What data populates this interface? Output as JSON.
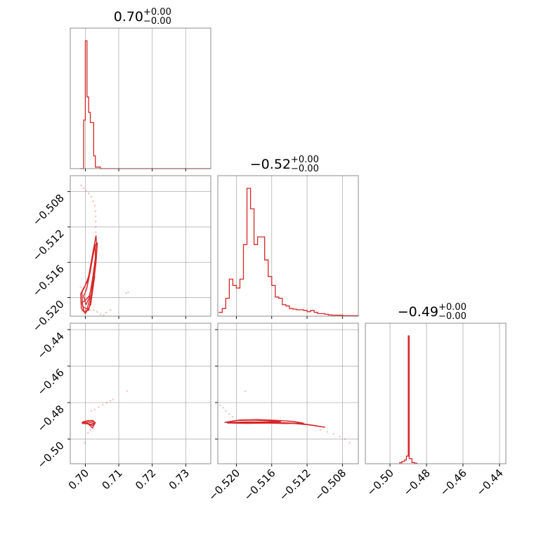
{
  "chart_data": {
    "type": "corner",
    "color": "#d62728",
    "grid": true,
    "parameters": [
      {
        "index": 0,
        "range": [
          0.6955,
          0.7375
        ],
        "ticks": [
          0.7,
          0.71,
          0.72,
          0.73
        ],
        "tick_labels": [
          "0.70",
          "0.71",
          "0.72",
          "0.73"
        ]
      },
      {
        "index": 1,
        "range": [
          -0.5221,
          -0.5062
        ],
        "ticks": [
          -0.52,
          -0.516,
          -0.512,
          -0.508
        ],
        "tick_labels": [
          "−0.520",
          "−0.516",
          "−0.512",
          "−0.508"
        ]
      },
      {
        "index": 2,
        "range": [
          -0.5135,
          -0.4365
        ],
        "ticks": [
          -0.5,
          -0.48,
          -0.46,
          -0.44
        ],
        "tick_labels": [
          "−0.50",
          "−0.48",
          "−0.46",
          "−0.44"
        ]
      }
    ],
    "titles": [
      {
        "value": "0.70",
        "plus": "+0.00",
        "minus": "−0.00"
      },
      {
        "value": "−0.52",
        "plus": "+0.00",
        "minus": "−0.00"
      },
      {
        "value": "−0.49",
        "plus": "+0.00",
        "minus": "−0.00"
      }
    ],
    "histograms": [
      {
        "param": 0,
        "bins": [
          [
            0.6985,
            0.6995,
            0.0
          ],
          [
            0.6995,
            0.7,
            0.38
          ],
          [
            0.7,
            0.7005,
            1.0
          ],
          [
            0.7005,
            0.701,
            0.56
          ],
          [
            0.701,
            0.7015,
            0.44
          ],
          [
            0.7015,
            0.7025,
            0.36
          ],
          [
            0.7025,
            0.703,
            0.1
          ],
          [
            0.703,
            0.7045,
            0.012
          ],
          [
            0.7045,
            0.7375,
            0.0
          ]
        ]
      },
      {
        "param": 1,
        "bins": [
          [
            -0.522,
            -0.5216,
            0.03
          ],
          [
            -0.5216,
            -0.5212,
            0.06
          ],
          [
            -0.5212,
            -0.5208,
            0.14
          ],
          [
            -0.5208,
            -0.5204,
            0.29
          ],
          [
            -0.5204,
            -0.52,
            0.24
          ],
          [
            -0.52,
            -0.5196,
            0.22
          ],
          [
            -0.5196,
            -0.5192,
            0.29
          ],
          [
            -0.5192,
            -0.5188,
            0.56
          ],
          [
            -0.5188,
            -0.5184,
            1.0
          ],
          [
            -0.5184,
            -0.518,
            0.84
          ],
          [
            -0.518,
            -0.5176,
            0.56
          ],
          [
            -0.5176,
            -0.5172,
            0.62
          ],
          [
            -0.5172,
            -0.5168,
            0.62
          ],
          [
            -0.5168,
            -0.5164,
            0.44
          ],
          [
            -0.5164,
            -0.516,
            0.31
          ],
          [
            -0.516,
            -0.5156,
            0.24
          ],
          [
            -0.5156,
            -0.5152,
            0.15
          ],
          [
            -0.5152,
            -0.5148,
            0.14
          ],
          [
            -0.5148,
            -0.5144,
            0.09
          ],
          [
            -0.5144,
            -0.514,
            0.08
          ],
          [
            -0.514,
            -0.5136,
            0.06
          ],
          [
            -0.5136,
            -0.5132,
            0.055
          ],
          [
            -0.5132,
            -0.5128,
            0.05
          ],
          [
            -0.5128,
            -0.5124,
            0.05
          ],
          [
            -0.5124,
            -0.512,
            0.045
          ],
          [
            -0.512,
            -0.5116,
            0.035
          ],
          [
            -0.5116,
            -0.5112,
            0.045
          ],
          [
            -0.5112,
            -0.5108,
            0.03
          ],
          [
            -0.5108,
            -0.5104,
            0.02
          ],
          [
            -0.5104,
            -0.51,
            0.02
          ],
          [
            -0.51,
            -0.5096,
            0.015
          ],
          [
            -0.5096,
            -0.5092,
            0.01
          ],
          [
            -0.5092,
            -0.508,
            0.008
          ],
          [
            -0.508,
            -0.5062,
            0.004
          ]
        ]
      },
      {
        "param": 2,
        "bins": [
          [
            -0.495,
            -0.4935,
            0.008
          ],
          [
            -0.4935,
            -0.492,
            0.018
          ],
          [
            -0.492,
            -0.491,
            0.03
          ],
          [
            -0.491,
            -0.49,
            0.06
          ],
          [
            -0.49,
            -0.4895,
            1.0
          ],
          [
            -0.4895,
            -0.488,
            0.04
          ],
          [
            -0.488,
            -0.4865,
            0.01
          ],
          [
            -0.4865,
            -0.485,
            0.004
          ]
        ]
      }
    ],
    "contours": [
      {
        "row": 1,
        "col": 0,
        "levels": [
          [
            [
              0.6995,
              -0.5198
            ],
            [
              0.7002,
              -0.5208
            ],
            [
              0.7012,
              -0.52
            ],
            [
              0.7022,
              -0.5178
            ],
            [
              0.703,
              -0.5155
            ],
            [
              0.703,
              -0.514
            ],
            [
              0.7024,
              -0.515
            ],
            [
              0.7014,
              -0.5172
            ],
            [
              0.7004,
              -0.519
            ],
            [
              0.6998,
              -0.5196
            ]
          ],
          [
            [
              0.699,
              -0.5194
            ],
            [
              0.6992,
              -0.521
            ],
            [
              0.7005,
              -0.5213
            ],
            [
              0.7018,
              -0.5196
            ],
            [
              0.7028,
              -0.5168
            ],
            [
              0.7034,
              -0.5144
            ],
            [
              0.7032,
              -0.513
            ],
            [
              0.7022,
              -0.515
            ],
            [
              0.701,
              -0.5176
            ],
            [
              0.6998,
              -0.5188
            ]
          ],
          [
            [
              0.6986,
              -0.5196
            ],
            [
              0.6988,
              -0.5212
            ],
            [
              0.7,
              -0.5218
            ],
            [
              0.7016,
              -0.5208
            ],
            [
              0.7024,
              -0.5186
            ],
            [
              0.7032,
              -0.516
            ],
            [
              0.7036,
              -0.5138
            ],
            [
              0.703,
              -0.514
            ],
            [
              0.7018,
              -0.5162
            ],
            [
              0.7006,
              -0.5182
            ],
            [
              0.6994,
              -0.519
            ]
          ],
          [
            [
              0.699,
              -0.5205
            ],
            [
              0.6996,
              -0.5216
            ],
            [
              0.701,
              -0.5214
            ],
            [
              0.702,
              -0.5196
            ],
            [
              0.7028,
              -0.5176
            ],
            [
              0.7024,
              -0.518
            ],
            [
              0.7012,
              -0.5198
            ],
            [
              0.6998,
              -0.5204
            ]
          ]
        ]
      },
      {
        "row": 2,
        "col": 0,
        "levels": [
          [
            [
              0.6993,
              -0.4905
            ],
            [
              0.701,
              -0.4898
            ],
            [
              0.7025,
              -0.4905
            ],
            [
              0.7028,
              -0.4918
            ],
            [
              0.7018,
              -0.492
            ],
            [
              0.7004,
              -0.4912
            ],
            [
              0.6995,
              -0.491
            ]
          ],
          [
            [
              0.699,
              -0.491
            ],
            [
              0.7005,
              -0.49
            ],
            [
              0.7022,
              -0.4898
            ],
            [
              0.703,
              -0.491
            ],
            [
              0.7024,
              -0.4928
            ],
            [
              0.7012,
              -0.4918
            ],
            [
              0.7,
              -0.4915
            ],
            [
              0.6992,
              -0.4915
            ]
          ],
          [
            [
              0.6992,
              -0.4912
            ],
            [
              0.701,
              -0.4906
            ],
            [
              0.7026,
              -0.4915
            ],
            [
              0.7022,
              -0.494
            ],
            [
              0.7016,
              -0.493
            ],
            [
              0.7008,
              -0.4915
            ]
          ]
        ]
      },
      {
        "row": 2,
        "col": 1,
        "levels": [
          [
            [
              -0.5208,
              -0.4905
            ],
            [
              -0.5196,
              -0.4895
            ],
            [
              -0.5176,
              -0.4893
            ],
            [
              -0.5156,
              -0.4897
            ],
            [
              -0.5136,
              -0.4903
            ],
            [
              -0.5124,
              -0.4913
            ],
            [
              -0.5144,
              -0.4915
            ],
            [
              -0.5166,
              -0.4912
            ],
            [
              -0.5186,
              -0.491
            ],
            [
              -0.5204,
              -0.491
            ]
          ],
          [
            [
              -0.5213,
              -0.4908
            ],
            [
              -0.52,
              -0.4898
            ],
            [
              -0.518,
              -0.4896
            ],
            [
              -0.516,
              -0.49
            ],
            [
              -0.515,
              -0.4904
            ],
            [
              -0.5165,
              -0.4906
            ],
            [
              -0.5185,
              -0.4906
            ],
            [
              -0.5205,
              -0.4908
            ]
          ],
          [
            [
              -0.521,
              -0.4912
            ],
            [
              -0.519,
              -0.4914
            ],
            [
              -0.517,
              -0.4913
            ],
            [
              -0.515,
              -0.491
            ],
            [
              -0.513,
              -0.4913
            ],
            [
              -0.5112,
              -0.4925
            ],
            [
              -0.51,
              -0.4935
            ],
            [
              -0.5118,
              -0.4922
            ],
            [
              -0.514,
              -0.4912
            ],
            [
              -0.5162,
              -0.4907
            ],
            [
              -0.519,
              -0.4906
            ]
          ]
        ]
      }
    ],
    "scatter": [
      {
        "row": 1,
        "col": 0,
        "points": [
          [
            0.6988,
            -0.5073
          ],
          [
            0.6995,
            -0.5076
          ],
          [
            0.7002,
            -0.5079
          ],
          [
            0.701,
            -0.5082
          ],
          [
            0.7018,
            -0.5086
          ],
          [
            0.7024,
            -0.5091
          ],
          [
            0.7028,
            -0.5096
          ],
          [
            0.703,
            -0.5102
          ],
          [
            0.7031,
            -0.5108
          ],
          [
            0.7031,
            -0.5114
          ],
          [
            0.7031,
            -0.512
          ],
          [
            0.7031,
            -0.5126
          ],
          [
            0.703,
            -0.5132
          ],
          [
            0.7028,
            -0.5138
          ],
          [
            0.6986,
            -0.5188
          ],
          [
            0.699,
            -0.5215
          ],
          [
            0.7002,
            -0.5214
          ],
          [
            0.7015,
            -0.5214
          ],
          [
            0.7025,
            -0.5214
          ],
          [
            0.7035,
            -0.5216
          ],
          [
            0.7046,
            -0.5219
          ],
          [
            0.7055,
            -0.522
          ],
          [
            0.7062,
            -0.5217
          ],
          [
            0.7075,
            -0.5214
          ],
          [
            0.7122,
            -0.5195
          ],
          [
            0.7128,
            -0.5194
          ]
        ]
      },
      {
        "row": 2,
        "col": 0,
        "points": [
          [
            0.7018,
            -0.4845
          ],
          [
            0.7028,
            -0.4838
          ],
          [
            0.704,
            -0.4825
          ],
          [
            0.7052,
            -0.4812
          ],
          [
            0.7064,
            -0.48
          ],
          [
            0.7075,
            -0.479
          ],
          [
            0.7083,
            -0.4783
          ],
          [
            0.7125,
            -0.4737
          ],
          [
            0.7015,
            -0.495
          ],
          [
            0.7008,
            -0.4965
          ],
          [
            0.6998,
            -0.502
          ]
        ]
      },
      {
        "row": 2,
        "col": 1,
        "points": [
          [
            -0.5218,
            -0.4815
          ],
          [
            -0.5215,
            -0.4828
          ],
          [
            -0.5212,
            -0.4845
          ],
          [
            -0.5208,
            -0.4862
          ],
          [
            -0.5204,
            -0.4878
          ],
          [
            -0.519,
            -0.4737
          ],
          [
            -0.5105,
            -0.495
          ],
          [
            -0.5097,
            -0.496
          ],
          [
            -0.509,
            -0.4972
          ],
          [
            -0.5083,
            -0.4985
          ],
          [
            -0.5077,
            -0.5
          ],
          [
            -0.5072,
            -0.502
          ]
        ]
      }
    ]
  }
}
